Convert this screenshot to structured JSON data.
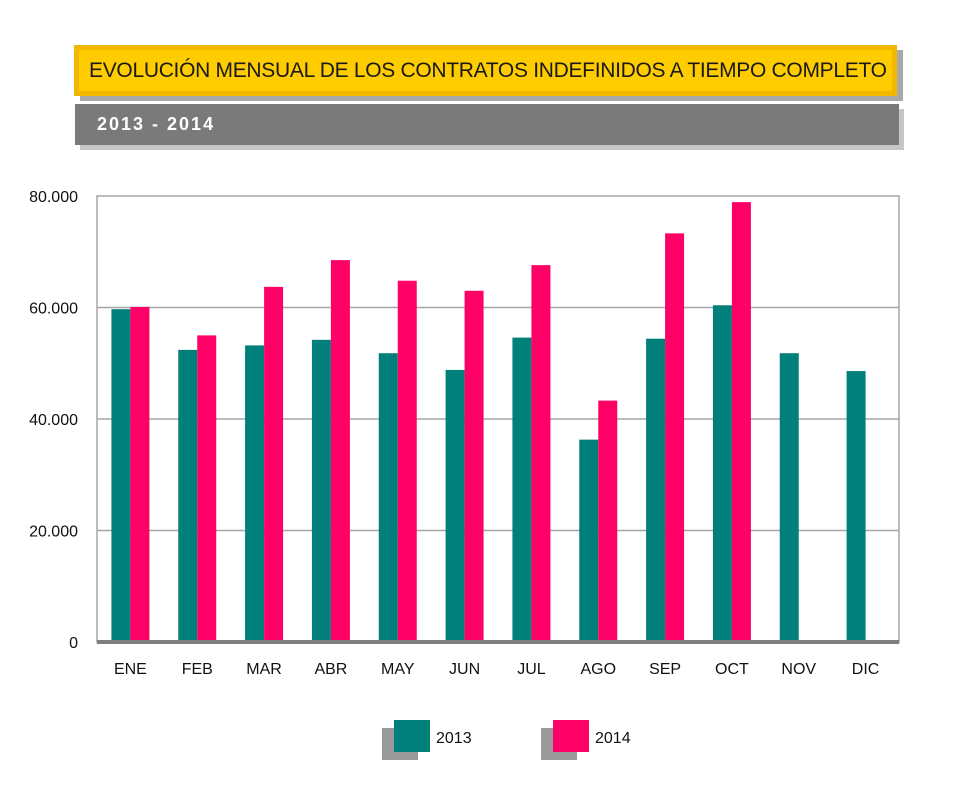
{
  "title": "EVOLUCIÓN MENSUAL DE LOS CONTRATOS INDEFINIDOS A TIEMPO COMPLETO",
  "subtitle": "2013 - 2014",
  "colors": {
    "s2013": "#007f7b",
    "s2014": "#ff0066",
    "grid": "#a6a6a6",
    "axis": "#7f7f7f"
  },
  "chart_data": {
    "type": "bar",
    "categories": [
      "ENE",
      "FEB",
      "MAR",
      "ABR",
      "MAY",
      "JUN",
      "JUL",
      "AGO",
      "SEP",
      "OCT",
      "NOV",
      "DIC"
    ],
    "series": [
      {
        "name": "2013",
        "values": [
          59700,
          52400,
          53200,
          54200,
          51800,
          48800,
          54600,
          36300,
          54400,
          60400,
          51800,
          48600
        ]
      },
      {
        "name": "2014",
        "values": [
          60100,
          55000,
          63700,
          68500,
          64800,
          63000,
          67600,
          43300,
          73300,
          78900,
          null,
          null
        ]
      }
    ],
    "yticks": [
      "80.000",
      "60.000",
      "40.000",
      "20.000",
      "0"
    ],
    "ylim": [
      0,
      80000
    ],
    "grid": true,
    "legend": "bottom"
  }
}
